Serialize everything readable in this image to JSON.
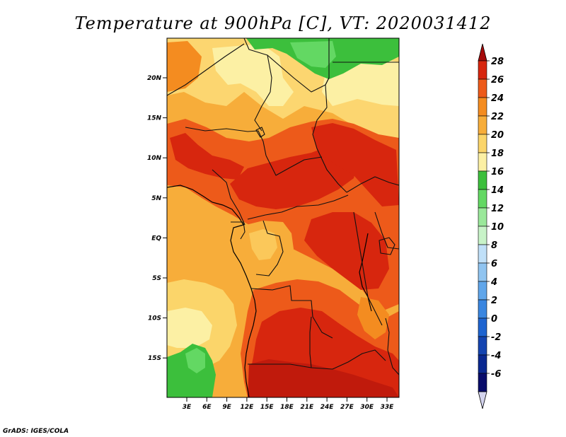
{
  "title": "Temperature at 900hPa [C], VT: 2020031412",
  "credit": "GrADS: IGES/COLA",
  "map": {
    "lat_labels": [
      "20N",
      "15N",
      "10N",
      "5N",
      "EQ",
      "5S",
      "10S",
      "15S"
    ],
    "lon_labels": [
      "3E",
      "6E",
      "9E",
      "12E",
      "15E",
      "18E",
      "21E",
      "24E",
      "27E",
      "30E",
      "33E"
    ]
  },
  "colorbar": {
    "labels": [
      "28",
      "26",
      "24",
      "22",
      "20",
      "18",
      "16",
      "14",
      "12",
      "10",
      "8",
      "6",
      "4",
      "2",
      "0",
      "-2",
      "-4",
      "-6"
    ],
    "colors": [
      "#a50a0a",
      "#d7260e",
      "#ed5a1a",
      "#f48c20",
      "#f7ad3a",
      "#fbd56a",
      "#fcf0a4",
      "#3cbf3c",
      "#63d863",
      "#9ae89a",
      "#c8f3c8",
      "#c0e0f8",
      "#90c4f0",
      "#60a6ea",
      "#3a86e0",
      "#1e64d0",
      "#1444b0",
      "#0a2890",
      "#080c6a",
      "#d4d4ee"
    ]
  }
}
